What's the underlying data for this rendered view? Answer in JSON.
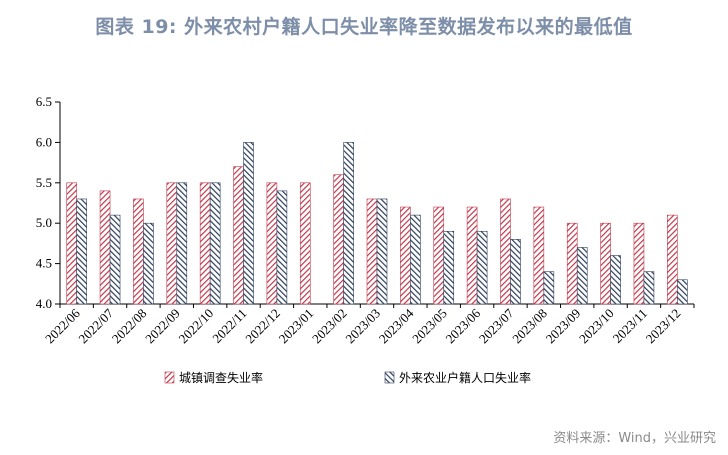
{
  "title": "图表 19: 外来农村户籍人口失业率降至数据发布以来的最低值",
  "source": "资料来源：Wind，兴业研究",
  "colors": {
    "urban": "#c0394b",
    "migrant": "#2c3e5c",
    "title": "#7d8ea8",
    "source": "#8a8a8a"
  },
  "chart_data": {
    "type": "bar",
    "categories": [
      "2022/06",
      "2022/07",
      "2022/08",
      "2022/09",
      "2022/10",
      "2022/11",
      "2022/12",
      "2023/01",
      "2023/02",
      "2023/03",
      "2023/04",
      "2023/05",
      "2023/06",
      "2023/07",
      "2023/08",
      "2023/09",
      "2023/10",
      "2023/11",
      "2023/12"
    ],
    "series": [
      {
        "name": "城镇调查失业率",
        "pattern": "red-diagonal-hatch",
        "values": [
          5.5,
          5.4,
          5.3,
          5.5,
          5.5,
          5.7,
          5.5,
          5.5,
          5.6,
          5.3,
          5.2,
          5.2,
          5.2,
          5.3,
          5.2,
          5.0,
          5.0,
          5.0,
          5.1
        ]
      },
      {
        "name": "外来农业户籍人口失业率",
        "pattern": "navy-diagonal-hatch",
        "values": [
          5.3,
          5.1,
          5.0,
          5.5,
          5.5,
          6.0,
          5.4,
          null,
          6.0,
          5.3,
          5.1,
          4.9,
          4.9,
          4.8,
          4.4,
          4.7,
          4.6,
          4.4,
          4.3
        ]
      }
    ],
    "ylim": [
      4.0,
      6.5
    ],
    "yticks": [
      "4.0",
      "4.5",
      "5.0",
      "5.5",
      "6.0",
      "6.5"
    ],
    "xlabel": "",
    "ylabel": "",
    "grid": false,
    "legend_position": "bottom"
  }
}
